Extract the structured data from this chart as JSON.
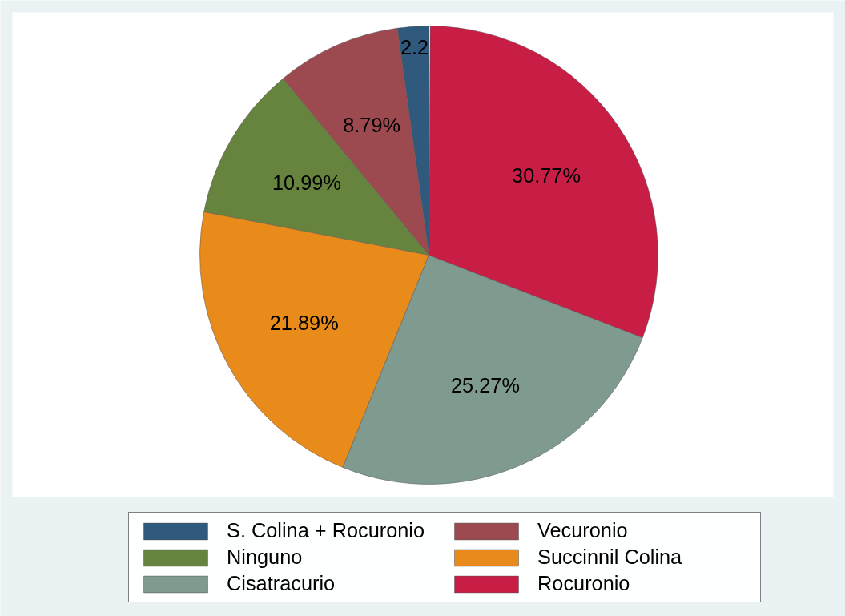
{
  "chart_data": {
    "type": "pie",
    "categories": [
      "S. Colina + Rocuronio",
      "Vecuronio",
      "Ninguno",
      "Succinnil Colina",
      "Cisatracurio",
      "Rocuronio"
    ],
    "values": [
      2.2,
      8.79,
      10.99,
      21.89,
      25.27,
      30.77
    ],
    "colors": [
      "#2f5a7e",
      "#9c4a4f",
      "#67843f",
      "#e88b1a",
      "#7f9a8f",
      "#c81e46"
    ],
    "value_labels": [
      "2.2",
      "8.79%",
      "10.99%",
      "21.89%",
      "25.27%",
      "30.77%"
    ],
    "legend": "bottom"
  }
}
